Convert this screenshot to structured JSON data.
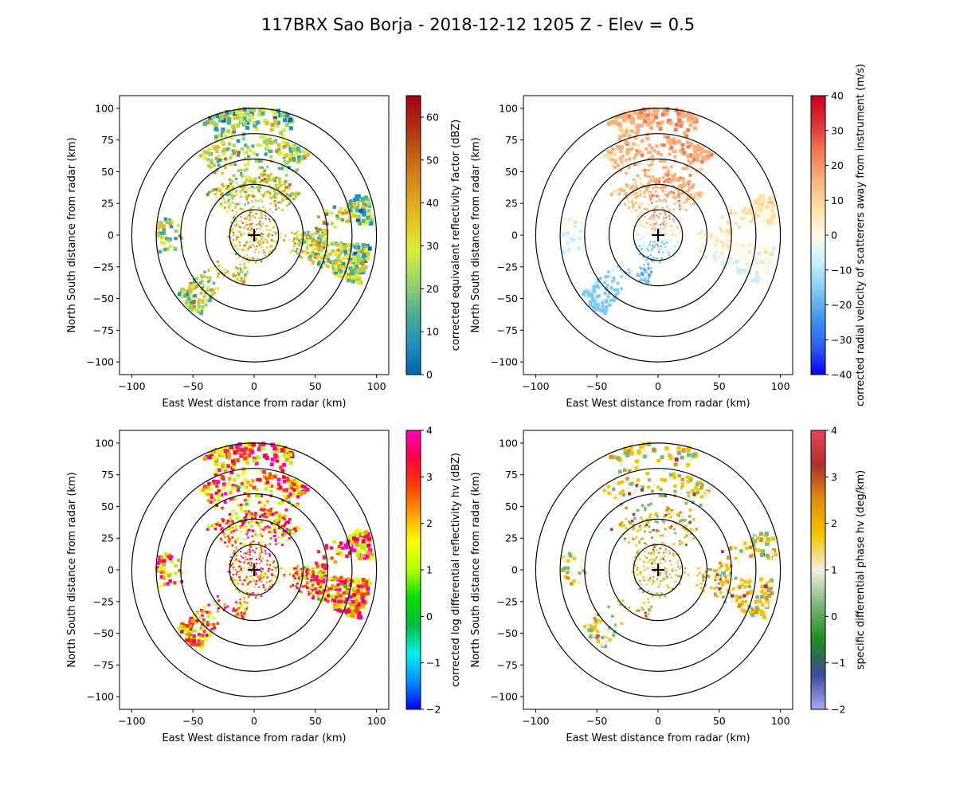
{
  "figure_title": "117BRX Sao Borja - 2018-12-12 1205 Z -  Elev = 0.5",
  "chart_data": [
    {
      "type": "heatmap",
      "title": "",
      "field": "reflectivity",
      "xlabel": "East West distance from radar (km)",
      "ylabel": "North South distance from radar (km)",
      "xlim": [
        -110,
        110
      ],
      "ylim": [
        -110,
        110
      ],
      "xticks": [
        -100,
        -50,
        0,
        50,
        100
      ],
      "yticks": [
        -100,
        -75,
        -50,
        -25,
        0,
        25,
        50,
        75,
        100
      ],
      "range_rings_km": [
        20,
        40,
        60,
        80,
        100
      ],
      "radar_location_km": [
        0,
        0
      ],
      "colorbar": {
        "label": "corrected equivalent reflectivity factor (dBZ)",
        "vmin": 0,
        "vmax": 65,
        "ticks": [
          0,
          10,
          20,
          30,
          40,
          50,
          60
        ],
        "colors": [
          "#0065aa",
          "#1d91c0",
          "#4fb08c",
          "#9ad46c",
          "#d9ee3c",
          "#e6c020",
          "#d9951a",
          "#c56414",
          "#b02e0f",
          "#a30010"
        ]
      }
    },
    {
      "type": "heatmap",
      "title": "",
      "field": "velocity",
      "xlabel": "East West distance from radar (km)",
      "ylabel": "North South distance from radar (km)",
      "xlim": [
        -110,
        110
      ],
      "ylim": [
        -110,
        110
      ],
      "xticks": [
        -100,
        -50,
        0,
        50,
        100
      ],
      "yticks": [
        -100,
        -75,
        -50,
        -25,
        0,
        25,
        50,
        75,
        100
      ],
      "range_rings_km": [
        20,
        40,
        60,
        80,
        100
      ],
      "radar_location_km": [
        0,
        0
      ],
      "colorbar": {
        "label": "corrected radial velocity of scatterers away from instrument (m/s)",
        "vmin": -40,
        "vmax": 40,
        "ticks": [
          -40,
          -30,
          -20,
          -10,
          0,
          10,
          20,
          30,
          40
        ],
        "colors": [
          "#0a00f5",
          "#2d5ef0",
          "#3f95ee",
          "#80c8f3",
          "#c6f0fb",
          "#fffbe8",
          "#fde0a0",
          "#f9b07a",
          "#f07a55",
          "#e0303a",
          "#c80020"
        ]
      }
    },
    {
      "type": "heatmap",
      "title": "",
      "field": "differential_reflectivity",
      "xlabel": "East West distance from radar (km)",
      "ylabel": "North South distance from radar (km)",
      "xlim": [
        -110,
        110
      ],
      "ylim": [
        -110,
        110
      ],
      "xticks": [
        -100,
        -50,
        0,
        50,
        100
      ],
      "yticks": [
        -100,
        -75,
        -50,
        -25,
        0,
        25,
        50,
        75,
        100
      ],
      "range_rings_km": [
        20,
        40,
        60,
        80,
        100
      ],
      "radar_location_km": [
        0,
        0
      ],
      "colorbar": {
        "label": "corrected log differential reflectivity hv (dBZ)",
        "vmin": -2,
        "vmax": 4,
        "ticks": [
          -2,
          -1,
          0,
          1,
          2,
          3,
          4
        ],
        "colors": [
          "#0000f0",
          "#0090ff",
          "#00f0f0",
          "#00c040",
          "#00e000",
          "#b0ff00",
          "#ffff00",
          "#ffa000",
          "#ff4000",
          "#ff0040",
          "#ff00c0"
        ]
      }
    },
    {
      "type": "heatmap",
      "title": "",
      "field": "specific_differential_phase",
      "xlabel": "East West distance from radar (km)",
      "ylabel": "North South distance from radar (km)",
      "xlim": [
        -110,
        110
      ],
      "ylim": [
        -110,
        110
      ],
      "xticks": [
        -100,
        -50,
        0,
        50,
        100
      ],
      "yticks": [
        -100,
        -75,
        -50,
        -25,
        0,
        25,
        50,
        75,
        100
      ],
      "range_rings_km": [
        20,
        40,
        60,
        80,
        100
      ],
      "radar_location_km": [
        0,
        0
      ],
      "colorbar": {
        "label": "specific differential phase hv (deg/km)",
        "vmin": -2,
        "vmax": 4,
        "ticks": [
          -2,
          -1,
          0,
          1,
          2,
          3,
          4
        ],
        "colors": [
          "#a8a8f5",
          "#3c4a9a",
          "#1e8c1e",
          "#7cb87a",
          "#f2efe0",
          "#f5c400",
          "#e09010",
          "#b0322a",
          "#e84060"
        ]
      }
    }
  ]
}
